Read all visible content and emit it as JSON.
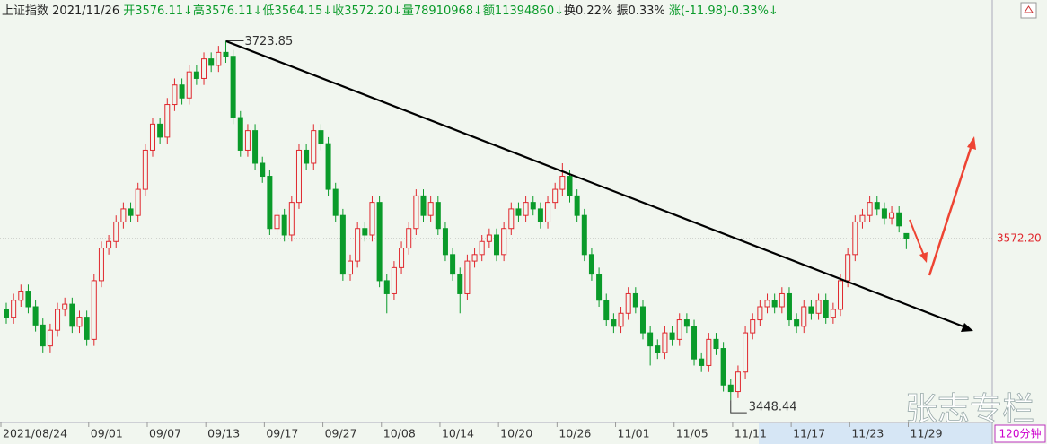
{
  "header": [
    "上证指数",
    "2021/11/26",
    "开3576.11↓",
    "高3576.11↓",
    "低3564.15↓",
    "收3572.20↓",
    "量78910968↓",
    "额11394860↓",
    "换0.22%",
    "振0.33%",
    "涨(-11.98)-0.33%↓"
  ],
  "chart_data": {
    "type": "candlestick",
    "title": "上证指数",
    "categories": [
      "2021/08/24",
      null,
      null,
      null,
      null,
      null,
      null,
      null,
      null,
      null,
      null,
      null,
      "09/01",
      null,
      null,
      null,
      null,
      null,
      null,
      null,
      "09/07",
      null,
      null,
      null,
      null,
      null,
      null,
      null,
      "09/13",
      null,
      null,
      null,
      null,
      null,
      null,
      null,
      "09/17",
      null,
      null,
      null,
      null,
      null,
      null,
      null,
      "09/27",
      null,
      null,
      null,
      null,
      null,
      null,
      null,
      "10/08",
      null,
      null,
      null,
      null,
      null,
      null,
      null,
      "10/14",
      null,
      null,
      null,
      null,
      null,
      null,
      null,
      "10/20",
      null,
      null,
      null,
      null,
      null,
      null,
      null,
      "10/26",
      null,
      null,
      null,
      null,
      null,
      null,
      null,
      "11/01",
      null,
      null,
      null,
      null,
      null,
      null,
      null,
      "11/05",
      null,
      null,
      null,
      null,
      null,
      null,
      null,
      "11/11",
      null,
      null,
      null,
      null,
      null,
      null,
      null,
      "11/17",
      null,
      null,
      null,
      null,
      null,
      null,
      null,
      "11/23",
      null,
      null,
      null,
      null,
      null,
      null,
      null,
      "11/29",
      null,
      null,
      null,
      null,
      null,
      null,
      null,
      null,
      null,
      null
    ],
    "open": [
      3518,
      3512,
      3525,
      3532,
      3520,
      3506,
      3490,
      3502,
      3518,
      3522,
      3505,
      3512,
      3495,
      3540,
      3565,
      3570,
      3585,
      3595,
      3590,
      3610,
      3640,
      3660,
      3650,
      3675,
      3690,
      3680,
      3700,
      3695,
      3710,
      3705,
      3715,
      3712,
      3665,
      3640,
      3655,
      3630,
      3620,
      3580,
      3590,
      3575,
      3600,
      3640,
      3630,
      3655,
      3645,
      3610,
      3590,
      3545,
      3555,
      3580,
      3575,
      3600,
      3540,
      3530,
      3550,
      3565,
      3580,
      3605,
      3590,
      3600,
      3580,
      3560,
      3545,
      3530,
      3555,
      3560,
      3570,
      3575,
      3560,
      3580,
      3595,
      3590,
      3600,
      3595,
      3585,
      3600,
      3610,
      3620,
      3605,
      3590,
      3560,
      3545,
      3525,
      3510,
      3505,
      3515,
      3530,
      3520,
      3500,
      3490,
      3485,
      3500,
      3495,
      3510,
      3505,
      3480,
      3475,
      3495,
      3488,
      3460,
      3455,
      3470,
      3500,
      3510,
      3520,
      3525,
      3520,
      3530,
      3510,
      3505,
      3520,
      3515,
      3525,
      3512,
      3518,
      3540,
      3560,
      3585,
      3590,
      3600,
      3595,
      3588,
      3592,
      3576.11,
      null,
      null,
      null,
      null,
      null,
      null,
      null,
      null,
      null,
      null,
      null
    ],
    "high": [
      3523,
      3530,
      3537,
      3537,
      3525,
      3511,
      3507,
      3523,
      3527,
      3527,
      3517,
      3517,
      3545,
      3570,
      3575,
      3590,
      3600,
      3600,
      3615,
      3645,
      3665,
      3665,
      3680,
      3695,
      3695,
      3705,
      3705,
      3715,
      3715,
      3720,
      3723.85,
      3717,
      3670,
      3660,
      3660,
      3635,
      3625,
      3595,
      3595,
      3605,
      3645,
      3645,
      3660,
      3660,
      3650,
      3615,
      3595,
      3560,
      3585,
      3585,
      3605,
      3605,
      3545,
      3555,
      3570,
      3585,
      3610,
      3610,
      3605,
      3605,
      3585,
      3565,
      3550,
      3560,
      3565,
      3575,
      3580,
      3580,
      3585,
      3600,
      3600,
      3605,
      3605,
      3600,
      3605,
      3615,
      3630,
      3625,
      3610,
      3595,
      3565,
      3550,
      3530,
      3515,
      3520,
      3535,
      3535,
      3525,
      3505,
      3495,
      3505,
      3505,
      3515,
      3515,
      3510,
      3485,
      3500,
      3500,
      3493,
      3465,
      3475,
      3505,
      3515,
      3525,
      3530,
      3530,
      3535,
      3535,
      3515,
      3525,
      3525,
      3530,
      3530,
      3523,
      3545,
      3565,
      3590,
      3595,
      3605,
      3605,
      3600,
      3597,
      3597,
      3576.11,
      null,
      null,
      null,
      null,
      null,
      null,
      null,
      null,
      null,
      null,
      null
    ],
    "low": [
      3507,
      3507,
      3520,
      3515,
      3501,
      3485,
      3485,
      3497,
      3513,
      3500,
      3500,
      3490,
      3490,
      3535,
      3560,
      3565,
      3580,
      3585,
      3585,
      3605,
      3635,
      3645,
      3645,
      3670,
      3675,
      3675,
      3690,
      3690,
      3700,
      3700,
      3707,
      3660,
      3635,
      3635,
      3625,
      3615,
      3575,
      3575,
      3570,
      3570,
      3595,
      3625,
      3625,
      3640,
      3605,
      3585,
      3540,
      3540,
      3550,
      3570,
      3570,
      3535,
      3515,
      3525,
      3545,
      3560,
      3575,
      3585,
      3585,
      3575,
      3555,
      3540,
      3515,
      3525,
      3550,
      3555,
      3565,
      3555,
      3555,
      3575,
      3585,
      3585,
      3590,
      3580,
      3580,
      3595,
      3605,
      3600,
      3585,
      3555,
      3540,
      3520,
      3505,
      3500,
      3500,
      3510,
      3515,
      3495,
      3475,
      3480,
      3480,
      3490,
      3490,
      3500,
      3475,
      3470,
      3470,
      3483,
      3455,
      3448.44,
      3450,
      3465,
      3495,
      3505,
      3515,
      3515,
      3515,
      3505,
      3500,
      3500,
      3510,
      3510,
      3507,
      3507,
      3513,
      3535,
      3555,
      3580,
      3585,
      3590,
      3583,
      3583,
      3577,
      3564.15,
      null,
      null,
      null,
      null,
      null,
      null,
      null,
      null,
      null,
      null,
      null
    ],
    "close": [
      3512,
      3525,
      3532,
      3520,
      3506,
      3490,
      3502,
      3518,
      3522,
      3505,
      3512,
      3495,
      3540,
      3565,
      3570,
      3585,
      3595,
      3590,
      3610,
      3640,
      3660,
      3650,
      3675,
      3690,
      3680,
      3700,
      3695,
      3710,
      3705,
      3715,
      3712,
      3665,
      3640,
      3655,
      3630,
      3620,
      3580,
      3590,
      3575,
      3600,
      3640,
      3630,
      3655,
      3645,
      3610,
      3590,
      3545,
      3555,
      3580,
      3575,
      3600,
      3540,
      3530,
      3550,
      3565,
      3580,
      3605,
      3590,
      3600,
      3580,
      3560,
      3545,
      3530,
      3555,
      3560,
      3570,
      3575,
      3560,
      3580,
      3595,
      3590,
      3600,
      3595,
      3585,
      3600,
      3610,
      3620,
      3605,
      3590,
      3560,
      3545,
      3525,
      3510,
      3505,
      3515,
      3530,
      3520,
      3500,
      3490,
      3485,
      3500,
      3495,
      3510,
      3505,
      3480,
      3475,
      3495,
      3488,
      3460,
      3455,
      3470,
      3500,
      3510,
      3520,
      3525,
      3520,
      3530,
      3510,
      3505,
      3520,
      3515,
      3525,
      3512,
      3518,
      3540,
      3560,
      3585,
      3590,
      3600,
      3595,
      3588,
      3592,
      3582,
      3572.2,
      null,
      null,
      null,
      null,
      null,
      null,
      null,
      null,
      null,
      null,
      null
    ],
    "up_color": "#e0282e",
    "down_color": "#0a9b2a",
    "ylim": [
      3432,
      3740
    ],
    "price_marker": {
      "value": 3572.2,
      "label": "3572.20"
    },
    "high_annotation": 3723.85,
    "low_annotation": 3448.44,
    "period": "120分钟",
    "watermark": "张志专栏"
  }
}
